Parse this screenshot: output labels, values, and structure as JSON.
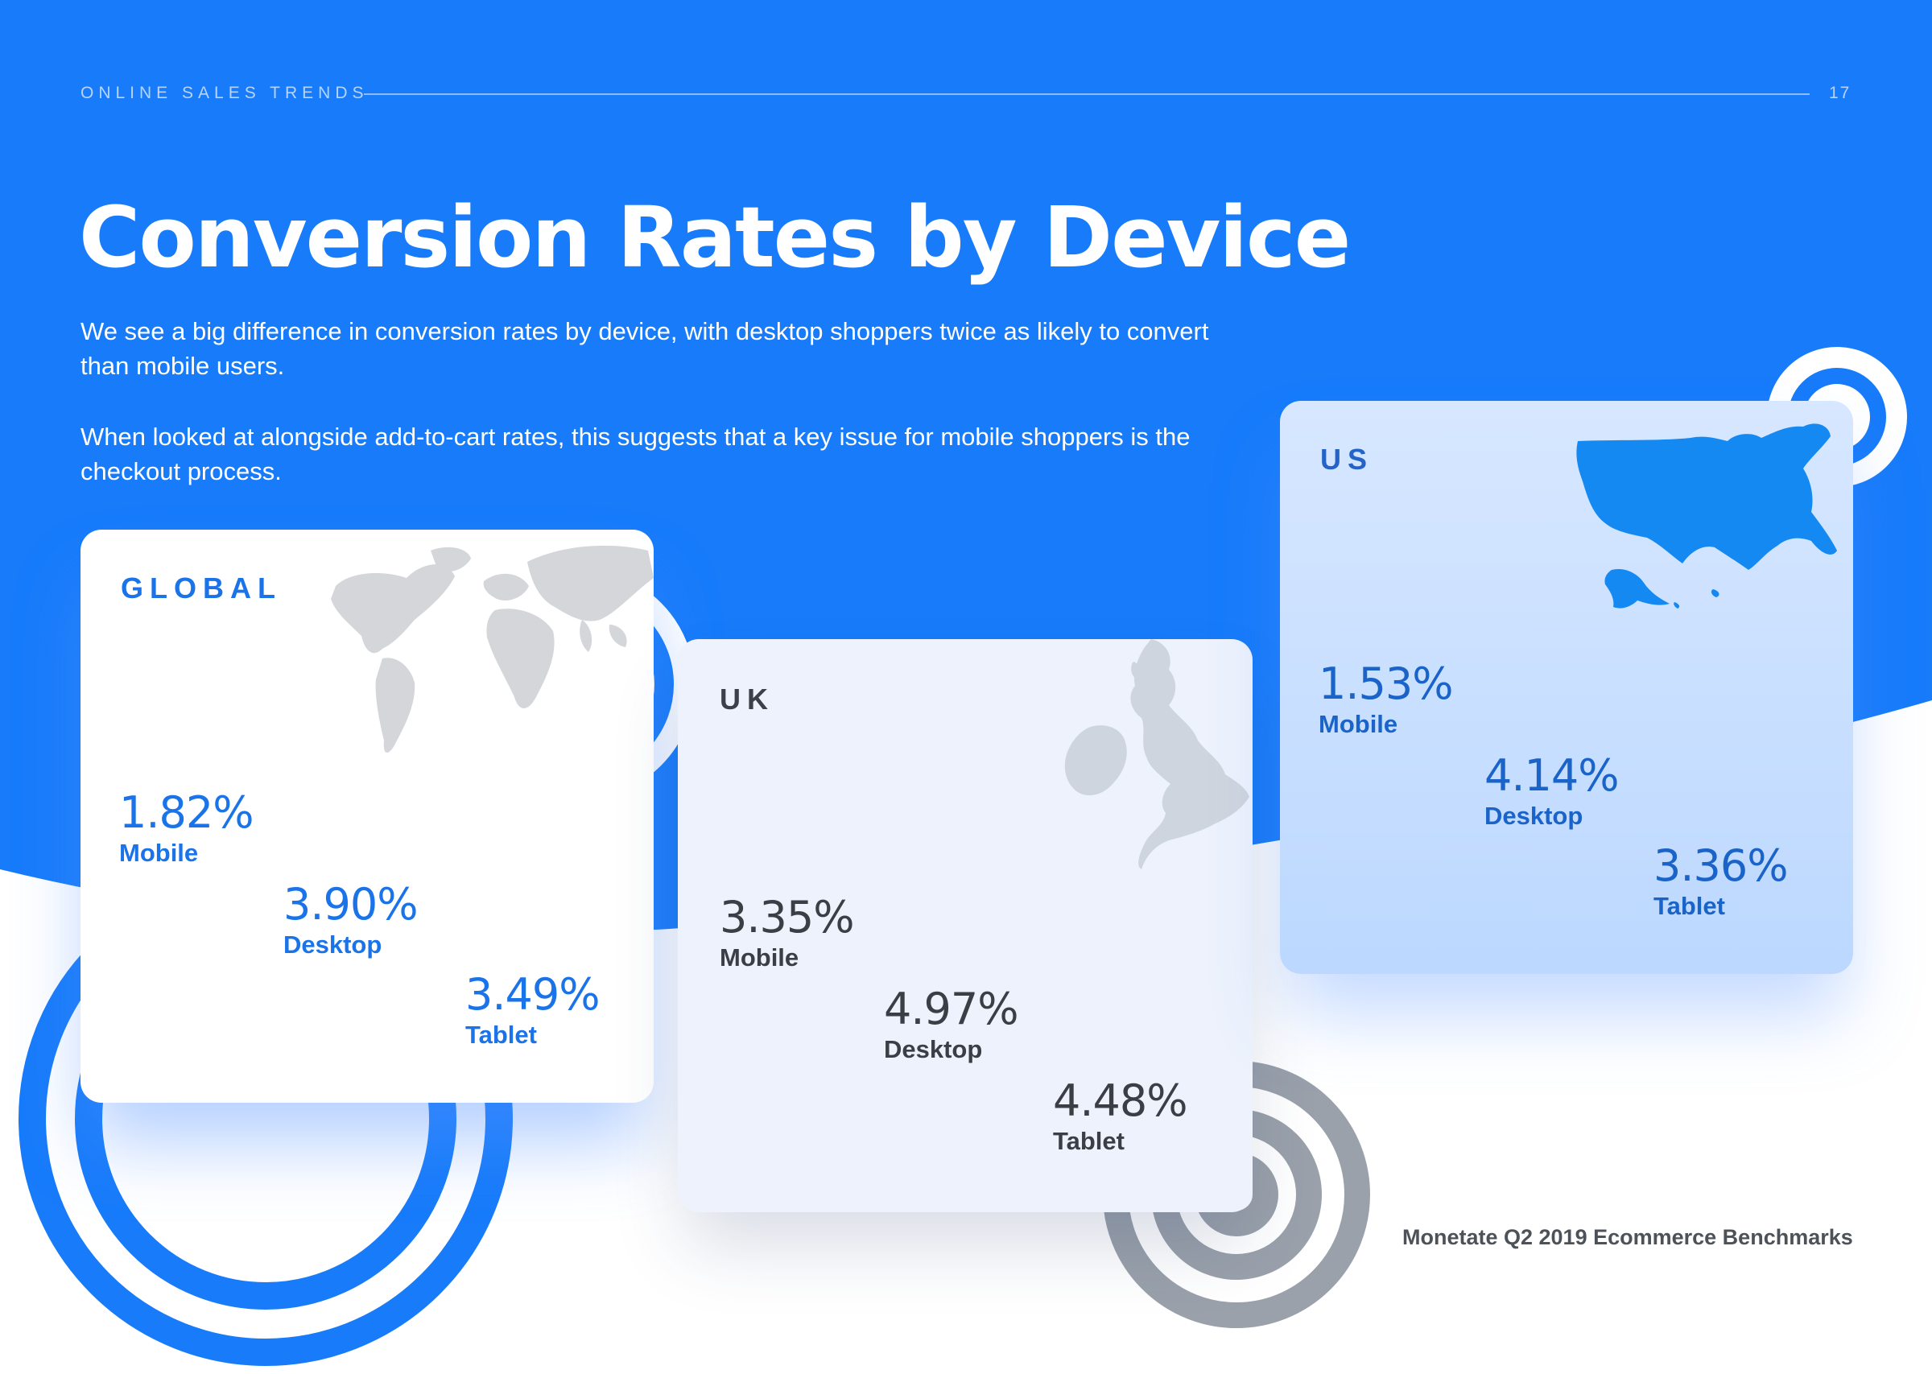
{
  "header": {
    "section_label": "ONLINE SALES TRENDS",
    "page_number": "17"
  },
  "title": "Conversion Rates by Device",
  "intro": {
    "paragraph_1": "We see a big difference in conversion rates by device, with desktop shoppers twice as likely to convert than mobile users.",
    "paragraph_2": "When looked at alongside add-to-cart rates, this suggests that a key issue for mobile shoppers is the checkout process."
  },
  "cards": [
    {
      "region": "GLOBAL",
      "stats": [
        {
          "value": "1.82%",
          "label": "Mobile",
          "rate": 1.82
        },
        {
          "value": "3.90%",
          "label": "Desktop",
          "rate": 3.9
        },
        {
          "value": "3.49%",
          "label": "Tablet",
          "rate": 3.49
        }
      ]
    },
    {
      "region": "UK",
      "stats": [
        {
          "value": "3.35%",
          "label": "Mobile",
          "rate": 3.35
        },
        {
          "value": "4.97%",
          "label": "Desktop",
          "rate": 4.97
        },
        {
          "value": "4.48%",
          "label": "Tablet",
          "rate": 4.48
        }
      ]
    },
    {
      "region": "US",
      "stats": [
        {
          "value": "1.53%",
          "label": "Mobile",
          "rate": 1.53
        },
        {
          "value": "4.14%",
          "label": "Desktop",
          "rate": 4.14
        },
        {
          "value": "3.36%",
          "label": "Tablet",
          "rate": 3.36
        }
      ]
    }
  ],
  "footer": {
    "source": "Monetate Q2 2019 Ecommerce Benchmarks"
  },
  "colors": {
    "brand_blue": "#177bfa",
    "global_accent": "#1a73e8",
    "uk_text": "#3b3f45",
    "us_accent": "#1a63c9",
    "map_grey": "#d4d6da",
    "ring_grey": "#9aa1ab"
  },
  "icons": {
    "global_map": "world-map-icon",
    "uk_map": "uk-ireland-map-icon",
    "us_map": "usa-map-icon"
  }
}
